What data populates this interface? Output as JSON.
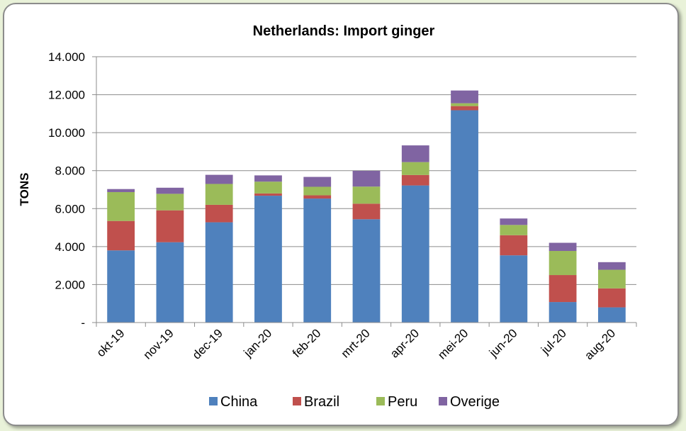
{
  "chart_data": {
    "type": "bar",
    "stacked": true,
    "title": "Netherlands: Import ginger",
    "ylabel": "TONS",
    "xlabel": "",
    "ylim": [
      0,
      14000
    ],
    "ytick_values": [
      0,
      2000,
      4000,
      6000,
      8000,
      10000,
      12000,
      14000
    ],
    "ytick_labels": [
      "-",
      "2.000",
      "4.000",
      "6.000",
      "8.000",
      "10.000",
      "12.000",
      "14.000"
    ],
    "grid": "horizontal",
    "legend": "bottom",
    "categories": [
      "okt-19",
      "nov-19",
      "dec-19",
      "jan-20",
      "feb-20",
      "mrt-20",
      "apr-20",
      "mei-20",
      "jun-20",
      "jul-20",
      "aug-20"
    ],
    "series": [
      {
        "name": "China",
        "color": "#4f81bd",
        "values": [
          3800,
          4230,
          5280,
          6680,
          6530,
          5440,
          7220,
          11180,
          3540,
          1080,
          800
        ]
      },
      {
        "name": "Brazil",
        "color": "#c0504d",
        "values": [
          1550,
          1680,
          920,
          120,
          170,
          820,
          550,
          220,
          1060,
          1420,
          1000
        ]
      },
      {
        "name": "Peru",
        "color": "#9bbb59",
        "values": [
          1520,
          870,
          1100,
          620,
          450,
          900,
          680,
          150,
          540,
          1270,
          980
        ]
      },
      {
        "name": "Overige",
        "color": "#8064a2",
        "values": [
          160,
          320,
          480,
          330,
          520,
          830,
          880,
          670,
          340,
          430,
          400
        ]
      }
    ]
  }
}
